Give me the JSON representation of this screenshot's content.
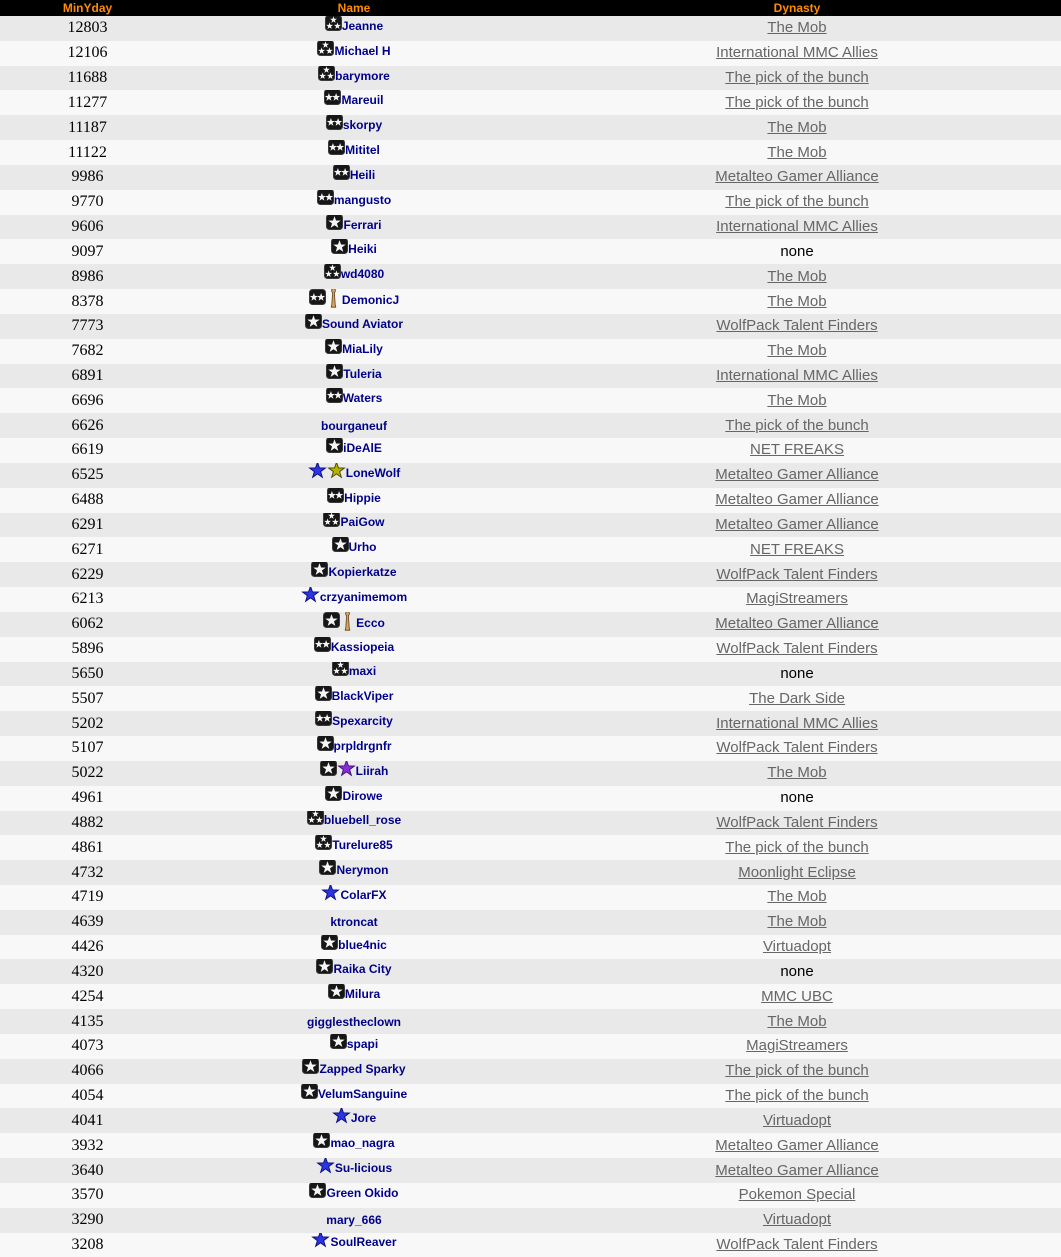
{
  "table": {
    "columns": [
      {
        "label": "MinYday"
      },
      {
        "label": "Name"
      },
      {
        "label": "Dynasty"
      }
    ],
    "colors": {
      "header_bg": "#000000",
      "header_text": "#ff8c00",
      "row_alt_dark": "#e9e9e9",
      "row_alt_light": "#f8f8f8",
      "player_name": "#00008b",
      "dynasty_link": "#666666",
      "badge_bg": "#161616",
      "badge_star": "#f5f5f5",
      "star_blue": "#2b35e6",
      "star_yellow": "#b3b300",
      "star_purple": "#8a2be2",
      "figurine_tan": "#d4a35f"
    },
    "icon_legend": {
      "badge-1-star": "black badge with one white star",
      "badge-2-star": "black badge with two white stars",
      "badge-3-star": "black badge with three white stars",
      "star-blue": "blue star",
      "star-yellow": "yellow star",
      "star-purple": "purple star",
      "figurine": "tan figurine trophy"
    },
    "rows": [
      {
        "minyday": "12803",
        "name": "Jeanne",
        "icons": [
          "badge-3-star"
        ],
        "dynasty": "The Mob",
        "dynasty_is_link": true
      },
      {
        "minyday": "12106",
        "name": "Michael H",
        "icons": [
          "badge-3-star"
        ],
        "dynasty": "International MMC Allies",
        "dynasty_is_link": true
      },
      {
        "minyday": "11688",
        "name": "barymore",
        "icons": [
          "badge-3-star"
        ],
        "dynasty": "The pick of the bunch",
        "dynasty_is_link": true
      },
      {
        "minyday": "11277",
        "name": "Mareuil",
        "icons": [
          "badge-2-star"
        ],
        "dynasty": "The pick of the bunch",
        "dynasty_is_link": true
      },
      {
        "minyday": "11187",
        "name": "skorpy",
        "icons": [
          "badge-2-star"
        ],
        "dynasty": "The Mob",
        "dynasty_is_link": true
      },
      {
        "minyday": "11122",
        "name": "Mititel",
        "icons": [
          "badge-2-star"
        ],
        "dynasty": "The Mob",
        "dynasty_is_link": true
      },
      {
        "minyday": "9986",
        "name": "Heili",
        "icons": [
          "badge-2-star"
        ],
        "dynasty": "Metalteo Gamer Alliance",
        "dynasty_is_link": true
      },
      {
        "minyday": "9770",
        "name": "mangusto",
        "icons": [
          "badge-2-star"
        ],
        "dynasty": "The pick of the bunch",
        "dynasty_is_link": true
      },
      {
        "minyday": "9606",
        "name": "Ferrari",
        "icons": [
          "badge-1-star"
        ],
        "dynasty": "International MMC Allies",
        "dynasty_is_link": true
      },
      {
        "minyday": "9097",
        "name": "Heiki",
        "icons": [
          "badge-1-star"
        ],
        "dynasty": "none",
        "dynasty_is_link": false
      },
      {
        "minyday": "8986",
        "name": "wd4080",
        "icons": [
          "badge-3-star"
        ],
        "dynasty": "The Mob",
        "dynasty_is_link": true
      },
      {
        "minyday": "8378",
        "name": "DemonicJ",
        "icons": [
          "badge-2-star",
          "figurine"
        ],
        "dynasty": "The Mob",
        "dynasty_is_link": true
      },
      {
        "minyday": "7773",
        "name": "Sound Aviator",
        "icons": [
          "badge-1-star"
        ],
        "dynasty": "WolfPack Talent Finders",
        "dynasty_is_link": true
      },
      {
        "minyday": "7682",
        "name": "MiaLily",
        "icons": [
          "badge-1-star"
        ],
        "dynasty": "The Mob",
        "dynasty_is_link": true
      },
      {
        "minyday": "6891",
        "name": "Tuleria",
        "icons": [
          "badge-1-star"
        ],
        "dynasty": "International MMC Allies",
        "dynasty_is_link": true
      },
      {
        "minyday": "6696",
        "name": "Waters",
        "icons": [
          "badge-2-star"
        ],
        "dynasty": "The Mob",
        "dynasty_is_link": true
      },
      {
        "minyday": "6626",
        "name": "bourganeuf",
        "icons": [],
        "dynasty": "The pick of the bunch",
        "dynasty_is_link": true
      },
      {
        "minyday": "6619",
        "name": "iDeAlE",
        "icons": [
          "badge-1-star"
        ],
        "dynasty": "NET FREAKS",
        "dynasty_is_link": true
      },
      {
        "minyday": "6525",
        "name": "LoneWolf",
        "icons": [
          "star-blue",
          "star-yellow"
        ],
        "dynasty": "Metalteo Gamer Alliance",
        "dynasty_is_link": true
      },
      {
        "minyday": "6488",
        "name": "Hippie",
        "icons": [
          "badge-2-star"
        ],
        "dynasty": "Metalteo Gamer Alliance",
        "dynasty_is_link": true
      },
      {
        "minyday": "6291",
        "name": "PaiGow",
        "icons": [
          "badge-3-star"
        ],
        "dynasty": "Metalteo Gamer Alliance",
        "dynasty_is_link": true
      },
      {
        "minyday": "6271",
        "name": "Urho",
        "icons": [
          "badge-1-star"
        ],
        "dynasty": "NET FREAKS",
        "dynasty_is_link": true
      },
      {
        "minyday": "6229",
        "name": "Kopierkatze",
        "icons": [
          "badge-1-star"
        ],
        "dynasty": "WolfPack Talent Finders",
        "dynasty_is_link": true
      },
      {
        "minyday": "6213",
        "name": "crzyanimemom",
        "icons": [
          "star-blue"
        ],
        "dynasty": "MagiStreamers",
        "dynasty_is_link": true
      },
      {
        "minyday": "6062",
        "name": "Ecco",
        "icons": [
          "badge-1-star",
          "figurine"
        ],
        "dynasty": "Metalteo Gamer Alliance",
        "dynasty_is_link": true
      },
      {
        "minyday": "5896",
        "name": "Kassiopeia",
        "icons": [
          "badge-2-star"
        ],
        "dynasty": "WolfPack Talent Finders",
        "dynasty_is_link": true
      },
      {
        "minyday": "5650",
        "name": "maxi",
        "icons": [
          "badge-3-star"
        ],
        "dynasty": "none",
        "dynasty_is_link": false
      },
      {
        "minyday": "5507",
        "name": "BlackViper",
        "icons": [
          "badge-1-star"
        ],
        "dynasty": "The Dark Side",
        "dynasty_is_link": true
      },
      {
        "minyday": "5202",
        "name": "Spexarcity",
        "icons": [
          "badge-2-star"
        ],
        "dynasty": "International MMC Allies",
        "dynasty_is_link": true
      },
      {
        "minyday": "5107",
        "name": "prpldrgnfr",
        "icons": [
          "badge-1-star"
        ],
        "dynasty": "WolfPack Talent Finders",
        "dynasty_is_link": true
      },
      {
        "minyday": "5022",
        "name": "Liirah",
        "icons": [
          "badge-1-star",
          "star-purple"
        ],
        "dynasty": "The Mob",
        "dynasty_is_link": true
      },
      {
        "minyday": "4961",
        "name": "Dirowe",
        "icons": [
          "badge-1-star"
        ],
        "dynasty": "none",
        "dynasty_is_link": false
      },
      {
        "minyday": "4882",
        "name": "bluebell_rose",
        "icons": [
          "badge-3-star"
        ],
        "dynasty": "WolfPack Talent Finders",
        "dynasty_is_link": true
      },
      {
        "minyday": "4861",
        "name": "Turelure85",
        "icons": [
          "badge-3-star"
        ],
        "dynasty": "The pick of the bunch",
        "dynasty_is_link": true
      },
      {
        "minyday": "4732",
        "name": "Nerymon",
        "icons": [
          "badge-1-star"
        ],
        "dynasty": "Moonlight Eclipse",
        "dynasty_is_link": true
      },
      {
        "minyday": "4719",
        "name": "ColarFX",
        "icons": [
          "star-blue"
        ],
        "dynasty": "The Mob",
        "dynasty_is_link": true
      },
      {
        "minyday": "4639",
        "name": "ktroncat",
        "icons": [],
        "dynasty": "The Mob",
        "dynasty_is_link": true
      },
      {
        "minyday": "4426",
        "name": "blue4nic",
        "icons": [
          "badge-1-star"
        ],
        "dynasty": "Virtuadopt",
        "dynasty_is_link": true
      },
      {
        "minyday": "4320",
        "name": "Raika City",
        "icons": [
          "badge-1-star"
        ],
        "dynasty": "none",
        "dynasty_is_link": false
      },
      {
        "minyday": "4254",
        "name": "Milura",
        "icons": [
          "badge-1-star"
        ],
        "dynasty": "MMC UBC",
        "dynasty_is_link": true
      },
      {
        "minyday": "4135",
        "name": "gigglestheclown",
        "icons": [],
        "dynasty": "The Mob",
        "dynasty_is_link": true
      },
      {
        "minyday": "4073",
        "name": "spapi",
        "icons": [
          "badge-1-star"
        ],
        "dynasty": "MagiStreamers",
        "dynasty_is_link": true
      },
      {
        "minyday": "4066",
        "name": "Zapped Sparky",
        "icons": [
          "badge-1-star"
        ],
        "dynasty": "The pick of the bunch",
        "dynasty_is_link": true
      },
      {
        "minyday": "4054",
        "name": "VelumSanguine",
        "icons": [
          "badge-1-star"
        ],
        "dynasty": "The pick of the bunch",
        "dynasty_is_link": true
      },
      {
        "minyday": "4041",
        "name": "Jore",
        "icons": [
          "star-blue"
        ],
        "dynasty": "Virtuadopt",
        "dynasty_is_link": true
      },
      {
        "minyday": "3932",
        "name": "mao_nagra",
        "icons": [
          "badge-1-star"
        ],
        "dynasty": "Metalteo Gamer Alliance",
        "dynasty_is_link": true
      },
      {
        "minyday": "3640",
        "name": "Su-licious",
        "icons": [
          "star-blue"
        ],
        "dynasty": "Metalteo Gamer Alliance",
        "dynasty_is_link": true
      },
      {
        "minyday": "3570",
        "name": "Green Okido",
        "icons": [
          "badge-1-star"
        ],
        "dynasty": "Pokemon Special",
        "dynasty_is_link": true
      },
      {
        "minyday": "3290",
        "name": "mary_666",
        "icons": [],
        "dynasty": "Virtuadopt",
        "dynasty_is_link": true
      },
      {
        "minyday": "3208",
        "name": "SoulReaver",
        "icons": [
          "star-blue"
        ],
        "dynasty": "WolfPack Talent Finders",
        "dynasty_is_link": true
      }
    ]
  }
}
